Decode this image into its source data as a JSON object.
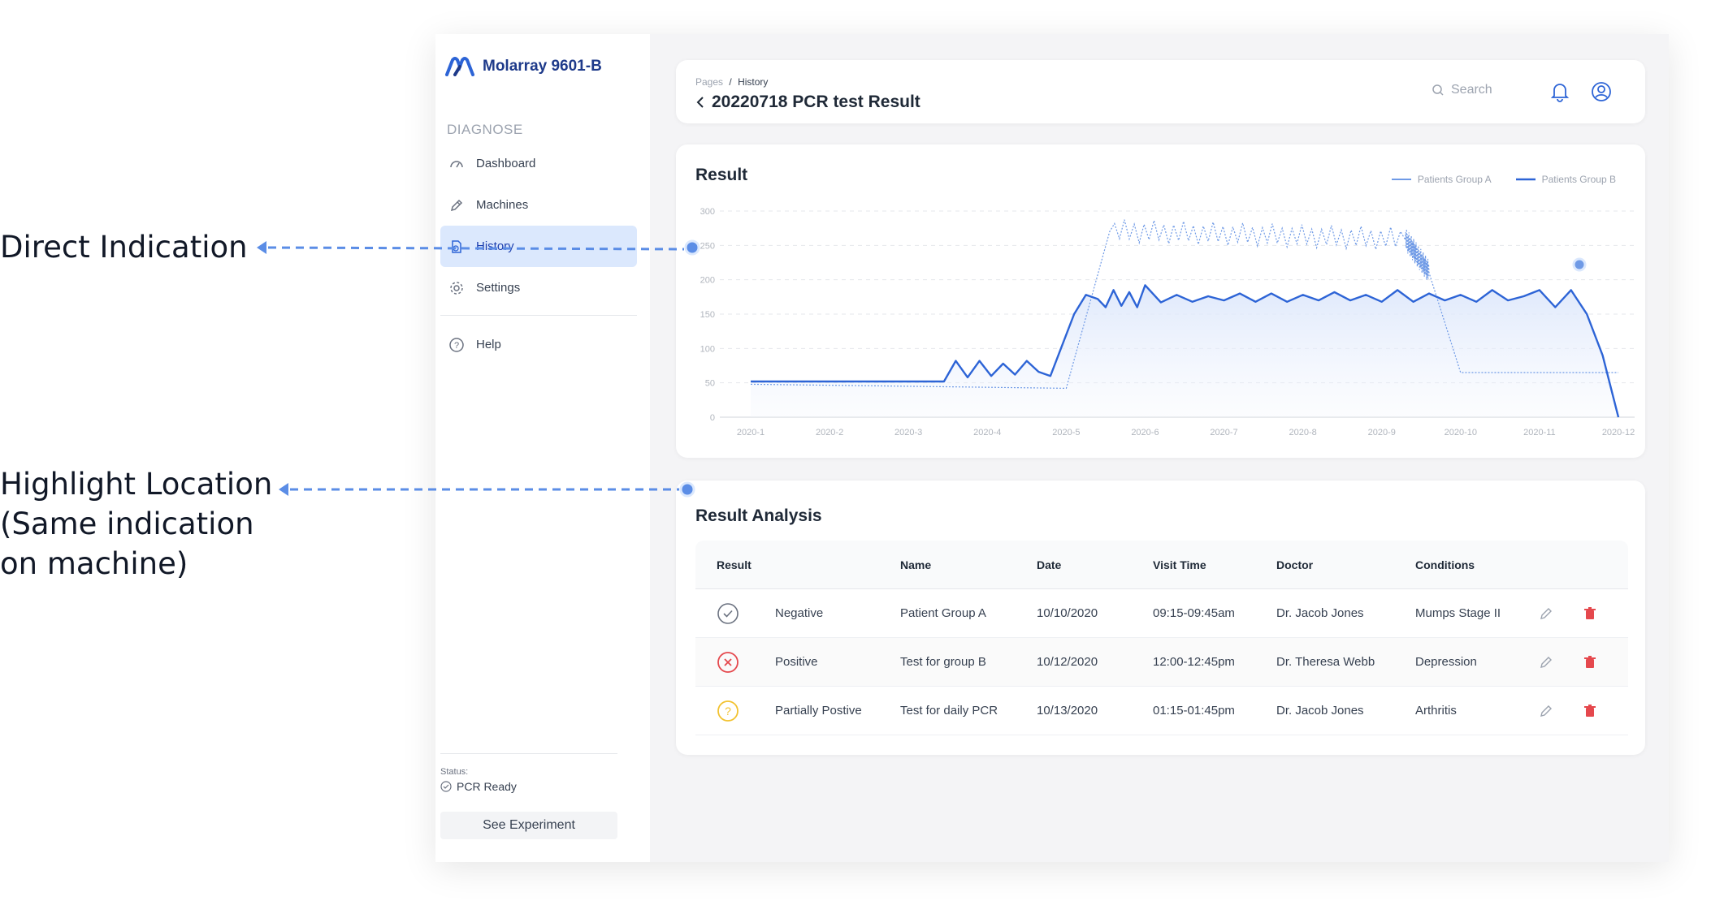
{
  "annotations": {
    "direct": "Direct Indication",
    "highlight_lines": [
      "Highlight Location",
      "(Same indication",
      "on machine)"
    ]
  },
  "brand": {
    "name": "Molarray 9601-B"
  },
  "sidebar": {
    "section": "DIAGNOSE",
    "items": [
      {
        "label": "Dashboard",
        "icon": "gauge-icon"
      },
      {
        "label": "Machines",
        "icon": "pencil-tool-icon"
      },
      {
        "label": "History",
        "icon": "history-file-icon"
      },
      {
        "label": "Settings",
        "icon": "gear-icon"
      },
      {
        "label": "Help",
        "icon": "help-circle-icon"
      }
    ],
    "status_label": "Status:",
    "status_value": "PCR Ready",
    "see_button": "See Experiment"
  },
  "header": {
    "crumb_root": "Pages",
    "crumb_sep": "/",
    "crumb_current": "History",
    "title": "20220718 PCR test Result",
    "search_placeholder": "Search"
  },
  "result": {
    "title": "Result",
    "legend_a": "Patients Group A",
    "legend_b": "Patients Group B"
  },
  "chart_data": {
    "type": "line",
    "title": "Result",
    "x_labels": [
      "2020-1",
      "2020-2",
      "2020-3",
      "2020-4",
      "2020-5",
      "2020-6",
      "2020-7",
      "2020-8",
      "2020-9",
      "2020-10",
      "2020-11",
      "2020-12"
    ],
    "y_ticks": [
      0,
      50,
      100,
      150,
      200,
      250,
      300
    ],
    "ylim": [
      0,
      300
    ],
    "legend": "top-right",
    "grid": true,
    "colors": {
      "series_a": "#6f9ae6",
      "series_b": "#2d64d6"
    },
    "series": [
      {
        "name": "Patients Group A",
        "style": "dotted",
        "x": [
          1,
          5,
          5.55,
          9.3,
          9.6,
          10,
          12
        ],
        "y": [
          48,
          42,
          270,
          258,
          210,
          65,
          65
        ]
      },
      {
        "name": "Patients Group B",
        "style": "solid",
        "x": [
          1,
          2,
          3,
          3.15,
          3.3,
          3.45,
          3.6,
          3.75,
          3.9,
          4.05,
          4.2,
          4.35,
          4.5,
          4.65,
          4.8,
          4.95,
          5.1,
          5.25,
          5.4,
          5.5,
          5.6,
          5.7,
          5.8,
          5.9,
          6.0,
          6.2,
          6.4,
          6.6,
          6.8,
          7.0,
          7.2,
          7.4,
          7.6,
          7.8,
          8.0,
          8.2,
          8.4,
          8.6,
          8.8,
          9.0,
          9.2,
          9.4,
          9.6,
          9.8,
          10.0,
          10.2,
          10.4,
          10.6,
          10.8,
          11.0,
          11.2,
          11.4,
          11.6,
          11.8,
          12
        ],
        "y": [
          52,
          52,
          52,
          52,
          52,
          52,
          82,
          58,
          82,
          60,
          78,
          62,
          82,
          66,
          60,
          105,
          150,
          178,
          172,
          160,
          185,
          162,
          182,
          160,
          192,
          167,
          178,
          168,
          176,
          170,
          180,
          168,
          180,
          168,
          178,
          170,
          182,
          170,
          178,
          168,
          185,
          168,
          180,
          170,
          178,
          168,
          185,
          170,
          176,
          185,
          160,
          185,
          150,
          90,
          0
        ]
      }
    ]
  },
  "analysis": {
    "title": "Result Analysis",
    "columns": [
      "Result",
      "Name",
      "Date",
      "Visit Time",
      "Doctor",
      "Conditions"
    ],
    "rows": [
      {
        "result": "Negative",
        "name": "Patient Group A",
        "date": "10/10/2020",
        "time": "09:15-09:45am",
        "doctor": "Dr. Jacob Jones",
        "condition": "Mumps Stage II",
        "status_icon": "check-circle-icon"
      },
      {
        "result": "Positive",
        "name": "Test for group B",
        "date": "10/12/2020",
        "time": "12:00-12:45pm",
        "doctor": "Dr. Theresa Webb",
        "condition": "Depression",
        "status_icon": "x-circle-icon"
      },
      {
        "result": "Partially Postive",
        "name": "Test for daily PCR",
        "date": "10/13/2020",
        "time": "01:15-01:45pm",
        "doctor": "Dr. Jacob Jones",
        "condition": "Arthritis",
        "status_icon": "question-circle-icon"
      }
    ]
  },
  "colors": {
    "accent": "#2d64d6",
    "positive": "#e5484d",
    "partial": "#f2c230",
    "negative": "#6b7280"
  }
}
